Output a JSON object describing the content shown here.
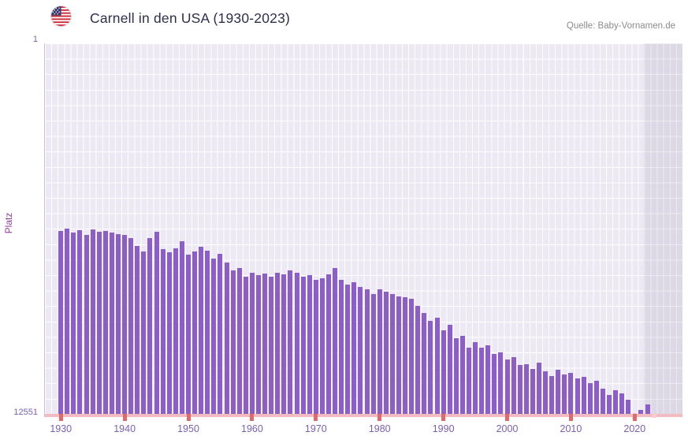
{
  "header": {
    "source": "Quelle: Baby-Vornamen.de",
    "flag_icon": "usa-flag"
  },
  "chart_data": {
    "type": "bar",
    "title": "Carnell in den USA (1930-2023)",
    "xlabel": "",
    "ylabel": "Platz",
    "bar_color": "#8c5fc8",
    "grid": true,
    "y_axis": {
      "top_tick_label": "1",
      "bottom_tick_label": "12551",
      "min": 1,
      "max": 12551,
      "inverted": true
    },
    "x_domain": [
      1928,
      2028
    ],
    "x_ticks": [
      1930,
      1940,
      1950,
      1960,
      1970,
      1980,
      1990,
      2000,
      2010,
      2020
    ],
    "no_data_region_start": 2022,
    "years": [
      1930,
      1931,
      1932,
      1933,
      1934,
      1935,
      1936,
      1937,
      1938,
      1939,
      1940,
      1941,
      1942,
      1943,
      1944,
      1945,
      1946,
      1947,
      1948,
      1949,
      1950,
      1951,
      1952,
      1953,
      1954,
      1955,
      1956,
      1957,
      1958,
      1959,
      1960,
      1961,
      1962,
      1963,
      1964,
      1965,
      1966,
      1967,
      1968,
      1969,
      1970,
      1971,
      1972,
      1973,
      1974,
      1975,
      1976,
      1977,
      1978,
      1979,
      1980,
      1981,
      1982,
      1983,
      1984,
      1985,
      1986,
      1987,
      1988,
      1989,
      1990,
      1991,
      1992,
      1993,
      1994,
      1995,
      1996,
      1997,
      1998,
      1999,
      2000,
      2001,
      2002,
      2003,
      2004,
      2005,
      2006,
      2007,
      2008,
      2009,
      2010,
      2011,
      2012,
      2013,
      2014,
      2015,
      2016,
      2017,
      2018,
      2019,
      2020,
      2021,
      2022,
      2023
    ],
    "ranks": [
      6350,
      6280,
      6400,
      6320,
      6500,
      6300,
      6380,
      6350,
      6420,
      6450,
      6480,
      6600,
      6850,
      7050,
      6600,
      6380,
      6980,
      7080,
      6950,
      6700,
      7150,
      7060,
      6880,
      7010,
      7280,
      7120,
      7430,
      7700,
      7620,
      7900,
      7760,
      7850,
      7810,
      7900,
      7760,
      7820,
      7700,
      7760,
      7900,
      7850,
      8000,
      7950,
      7820,
      7620,
      8000,
      8160,
      8100,
      8260,
      8320,
      8500,
      8320,
      8420,
      8500,
      8560,
      8600,
      8660,
      8900,
      9120,
      9400,
      9300,
      9720,
      9520,
      10000,
      9900,
      10300,
      10120,
      10320,
      10220,
      10520,
      10460,
      10700,
      10620,
      10900,
      10860,
      11020,
      10820,
      11120,
      11260,
      11060,
      11220,
      11160,
      11360,
      11300,
      11500,
      11420,
      11700,
      11900,
      11760,
      11860,
      12060,
      null,
      12420,
      12220,
      null
    ]
  }
}
